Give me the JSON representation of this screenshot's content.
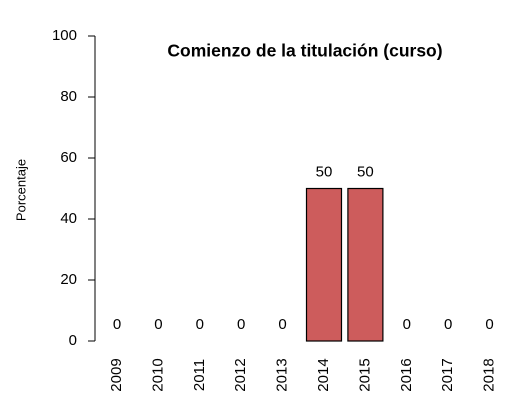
{
  "chart_data": {
    "type": "bar",
    "title": "Comienzo de la titulación (curso)",
    "ylabel": "Porcentaje",
    "categories": [
      "2009",
      "2010",
      "2011",
      "2012",
      "2013",
      "2014",
      "2015",
      "2016",
      "2017",
      "2018"
    ],
    "values": [
      0,
      0,
      0,
      0,
      0,
      50,
      50,
      0,
      0,
      0
    ],
    "color": "#cd5c5c",
    "ylim": [
      0,
      100
    ],
    "yticks": [
      0,
      20,
      40,
      60,
      80,
      100
    ]
  }
}
